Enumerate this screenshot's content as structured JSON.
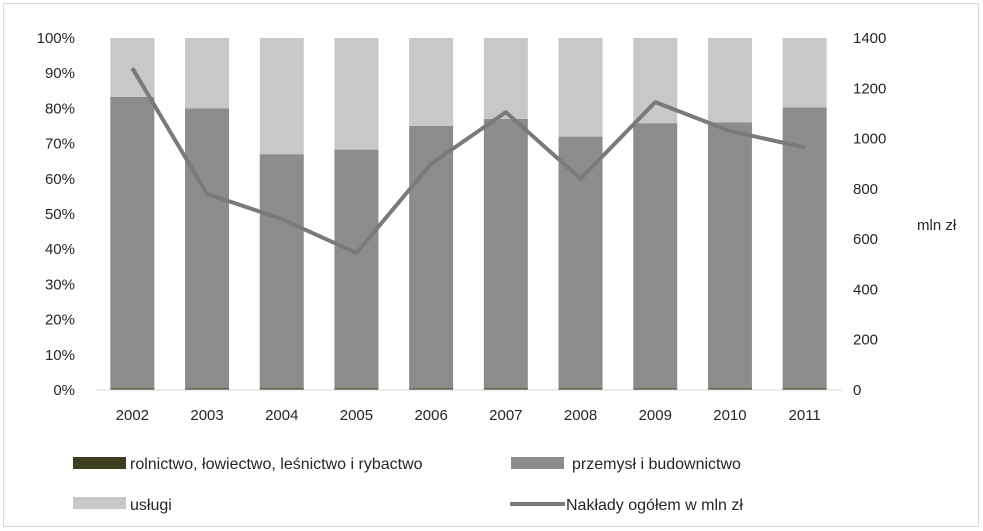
{
  "chart_data": {
    "type": "bar",
    "stacked_percent": true,
    "categories": [
      "2002",
      "2003",
      "2004",
      "2005",
      "2006",
      "2007",
      "2008",
      "2009",
      "2010",
      "2011"
    ],
    "series": [
      {
        "name": "rolnictwo, łowiectwo, leśnictwo i rybactwo",
        "kind": "bar",
        "axis": "left",
        "color": "#3d3d1f",
        "values": [
          0.5,
          0.5,
          0.5,
          0.5,
          0.5,
          0.5,
          0.5,
          0.5,
          0.5,
          0.5
        ]
      },
      {
        "name": "przemysł i budownictwo",
        "kind": "bar",
        "axis": "left",
        "color": "#8c8c8c",
        "values": [
          82.8,
          79.5,
          66.5,
          67.8,
          74.5,
          76.5,
          71.5,
          75.3,
          75.5,
          79.8
        ]
      },
      {
        "name": "usługi",
        "kind": "bar",
        "axis": "left",
        "color": "#c8c8c8",
        "values": [
          16.7,
          20.0,
          33.0,
          31.7,
          25.0,
          23.0,
          28.0,
          24.2,
          24.0,
          19.7
        ]
      },
      {
        "name": "Nakłady ogółem w mln zł",
        "kind": "line",
        "axis": "right",
        "color": "#7a7a7a",
        "values": [
          1280,
          780,
          680,
          545,
          900,
          1105,
          840,
          1145,
          1030,
          965
        ]
      }
    ],
    "y_left": {
      "ticks": [
        "0%",
        "10%",
        "20%",
        "30%",
        "40%",
        "50%",
        "60%",
        "70%",
        "80%",
        "90%",
        "100%"
      ],
      "range": [
        0,
        100
      ]
    },
    "y_right": {
      "label": "mln zł",
      "ticks": [
        "0",
        "200",
        "400",
        "600",
        "800",
        "1000",
        "1200",
        "1400"
      ],
      "range": [
        0,
        1400
      ]
    },
    "grid": false,
    "legend_position": "bottom"
  }
}
